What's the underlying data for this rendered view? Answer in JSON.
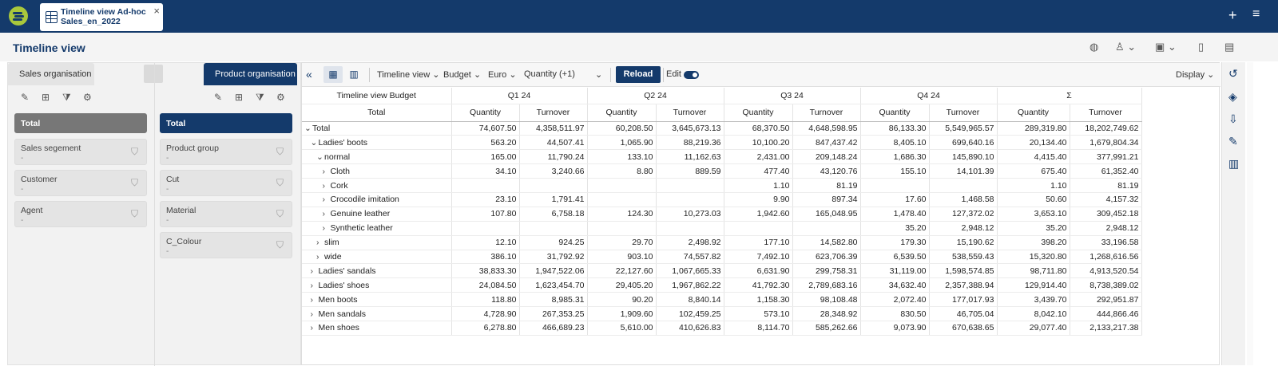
{
  "top": {
    "tab_line1": "Timeline view Ad-hoc",
    "tab_line2": "Sales_en_2022",
    "close": "×",
    "plus": "+",
    "menu": "≡"
  },
  "header": {
    "title": "Timeline view"
  },
  "left": {
    "tab_sales": "Sales organisation",
    "tab_product": "Product organisation",
    "sales": [
      {
        "name": "Total"
      },
      {
        "name": "Sales segement",
        "value": "-"
      },
      {
        "name": "Customer",
        "value": "-"
      },
      {
        "name": "Agent",
        "value": "-"
      }
    ],
    "product": [
      {
        "name": "Total"
      },
      {
        "name": "Product group",
        "value": "-"
      },
      {
        "name": "Cut",
        "value": "-"
      },
      {
        "name": "Material",
        "value": "-"
      },
      {
        "name": "C_Colour",
        "value": "-"
      }
    ]
  },
  "toolbar": {
    "collapse": "«",
    "view": "Timeline view",
    "budget": "Budget",
    "currency": "Euro",
    "measure": "Quantity (+1)",
    "reload": "Reload",
    "edit": "Edit",
    "display": "Display"
  },
  "table": {
    "corner": "Timeline view Budget",
    "total_label": "Total",
    "quarters": [
      "Q1 24",
      "Q2 24",
      "Q3 24",
      "Q4 24",
      "Σ"
    ],
    "measures": [
      "Quantity",
      "Turnover"
    ],
    "rows": [
      {
        "indent": 0,
        "chev": "⌄",
        "label": "Total",
        "cells": [
          "74,607.50",
          "4,358,511.97",
          "60,208.50",
          "3,645,673.13",
          "68,370.50",
          "4,648,598.95",
          "86,133.30",
          "5,549,965.57",
          "289,319.80",
          "18,202,749.62"
        ]
      },
      {
        "indent": 1,
        "chev": "⌄",
        "label": "Ladies' boots",
        "cells": [
          "563.20",
          "44,507.41",
          "1,065.90",
          "88,219.36",
          "10,100.20",
          "847,437.42",
          "8,405.10",
          "699,640.16",
          "20,134.40",
          "1,679,804.34"
        ]
      },
      {
        "indent": 2,
        "chev": "⌄",
        "label": "normal",
        "cells": [
          "165.00",
          "11,790.24",
          "133.10",
          "11,162.63",
          "2,431.00",
          "209,148.24",
          "1,686.30",
          "145,890.10",
          "4,415.40",
          "377,991.21"
        ]
      },
      {
        "indent": 3,
        "chev": "›",
        "label": "Cloth",
        "cells": [
          "34.10",
          "3,240.66",
          "8.80",
          "889.59",
          "477.40",
          "43,120.76",
          "155.10",
          "14,101.39",
          "675.40",
          "61,352.40"
        ]
      },
      {
        "indent": 3,
        "chev": "›",
        "label": "Cork",
        "cells": [
          "",
          "",
          "",
          "",
          "1.10",
          "81.19",
          "",
          "",
          "1.10",
          "81.19"
        ]
      },
      {
        "indent": 3,
        "chev": "›",
        "label": "Crocodile imitation",
        "cells": [
          "23.10",
          "1,791.41",
          "",
          "",
          "9.90",
          "897.34",
          "17.60",
          "1,468.58",
          "50.60",
          "4,157.32"
        ]
      },
      {
        "indent": 3,
        "chev": "›",
        "label": "Genuine leather",
        "cells": [
          "107.80",
          "6,758.18",
          "124.30",
          "10,273.03",
          "1,942.60",
          "165,048.95",
          "1,478.40",
          "127,372.02",
          "3,653.10",
          "309,452.18"
        ]
      },
      {
        "indent": 3,
        "chev": "›",
        "label": "Synthetic leather",
        "cells": [
          "",
          "",
          "",
          "",
          "",
          "",
          "35.20",
          "2,948.12",
          "35.20",
          "2,948.12"
        ]
      },
      {
        "indent": 2,
        "chev": "›",
        "label": "slim",
        "cells": [
          "12.10",
          "924.25",
          "29.70",
          "2,498.92",
          "177.10",
          "14,582.80",
          "179.30",
          "15,190.62",
          "398.20",
          "33,196.58"
        ]
      },
      {
        "indent": 2,
        "chev": "›",
        "label": "wide",
        "cells": [
          "386.10",
          "31,792.92",
          "903.10",
          "74,557.82",
          "7,492.10",
          "623,706.39",
          "6,539.50",
          "538,559.43",
          "15,320.80",
          "1,268,616.56"
        ]
      },
      {
        "indent": 1,
        "chev": "›",
        "label": "Ladies' sandals",
        "cells": [
          "38,833.30",
          "1,947,522.06",
          "22,127.60",
          "1,067,665.33",
          "6,631.90",
          "299,758.31",
          "31,119.00",
          "1,598,574.85",
          "98,711.80",
          "4,913,520.54"
        ]
      },
      {
        "indent": 1,
        "chev": "›",
        "label": "Ladies' shoes",
        "cells": [
          "24,084.50",
          "1,623,454.70",
          "29,405.20",
          "1,967,862.22",
          "41,792.30",
          "2,789,683.16",
          "34,632.40",
          "2,357,388.94",
          "129,914.40",
          "8,738,389.02"
        ]
      },
      {
        "indent": 1,
        "chev": "›",
        "label": "Men boots",
        "cells": [
          "118.80",
          "8,985.31",
          "90.20",
          "8,840.14",
          "1,158.30",
          "98,108.48",
          "2,072.40",
          "177,017.93",
          "3,439.70",
          "292,951.87"
        ]
      },
      {
        "indent": 1,
        "chev": "›",
        "label": "Men sandals",
        "cells": [
          "4,728.90",
          "267,353.25",
          "1,909.60",
          "102,459.25",
          "573.10",
          "28,348.92",
          "830.50",
          "46,705.04",
          "8,042.10",
          "444,866.46"
        ]
      },
      {
        "indent": 1,
        "chev": "›",
        "label": "Men shoes",
        "cells": [
          "6,278.80",
          "466,689.23",
          "5,610.00",
          "410,626.83",
          "8,114.70",
          "585,262.66",
          "9,073.90",
          "670,638.65",
          "29,077.40",
          "2,133,217.38"
        ]
      }
    ]
  }
}
